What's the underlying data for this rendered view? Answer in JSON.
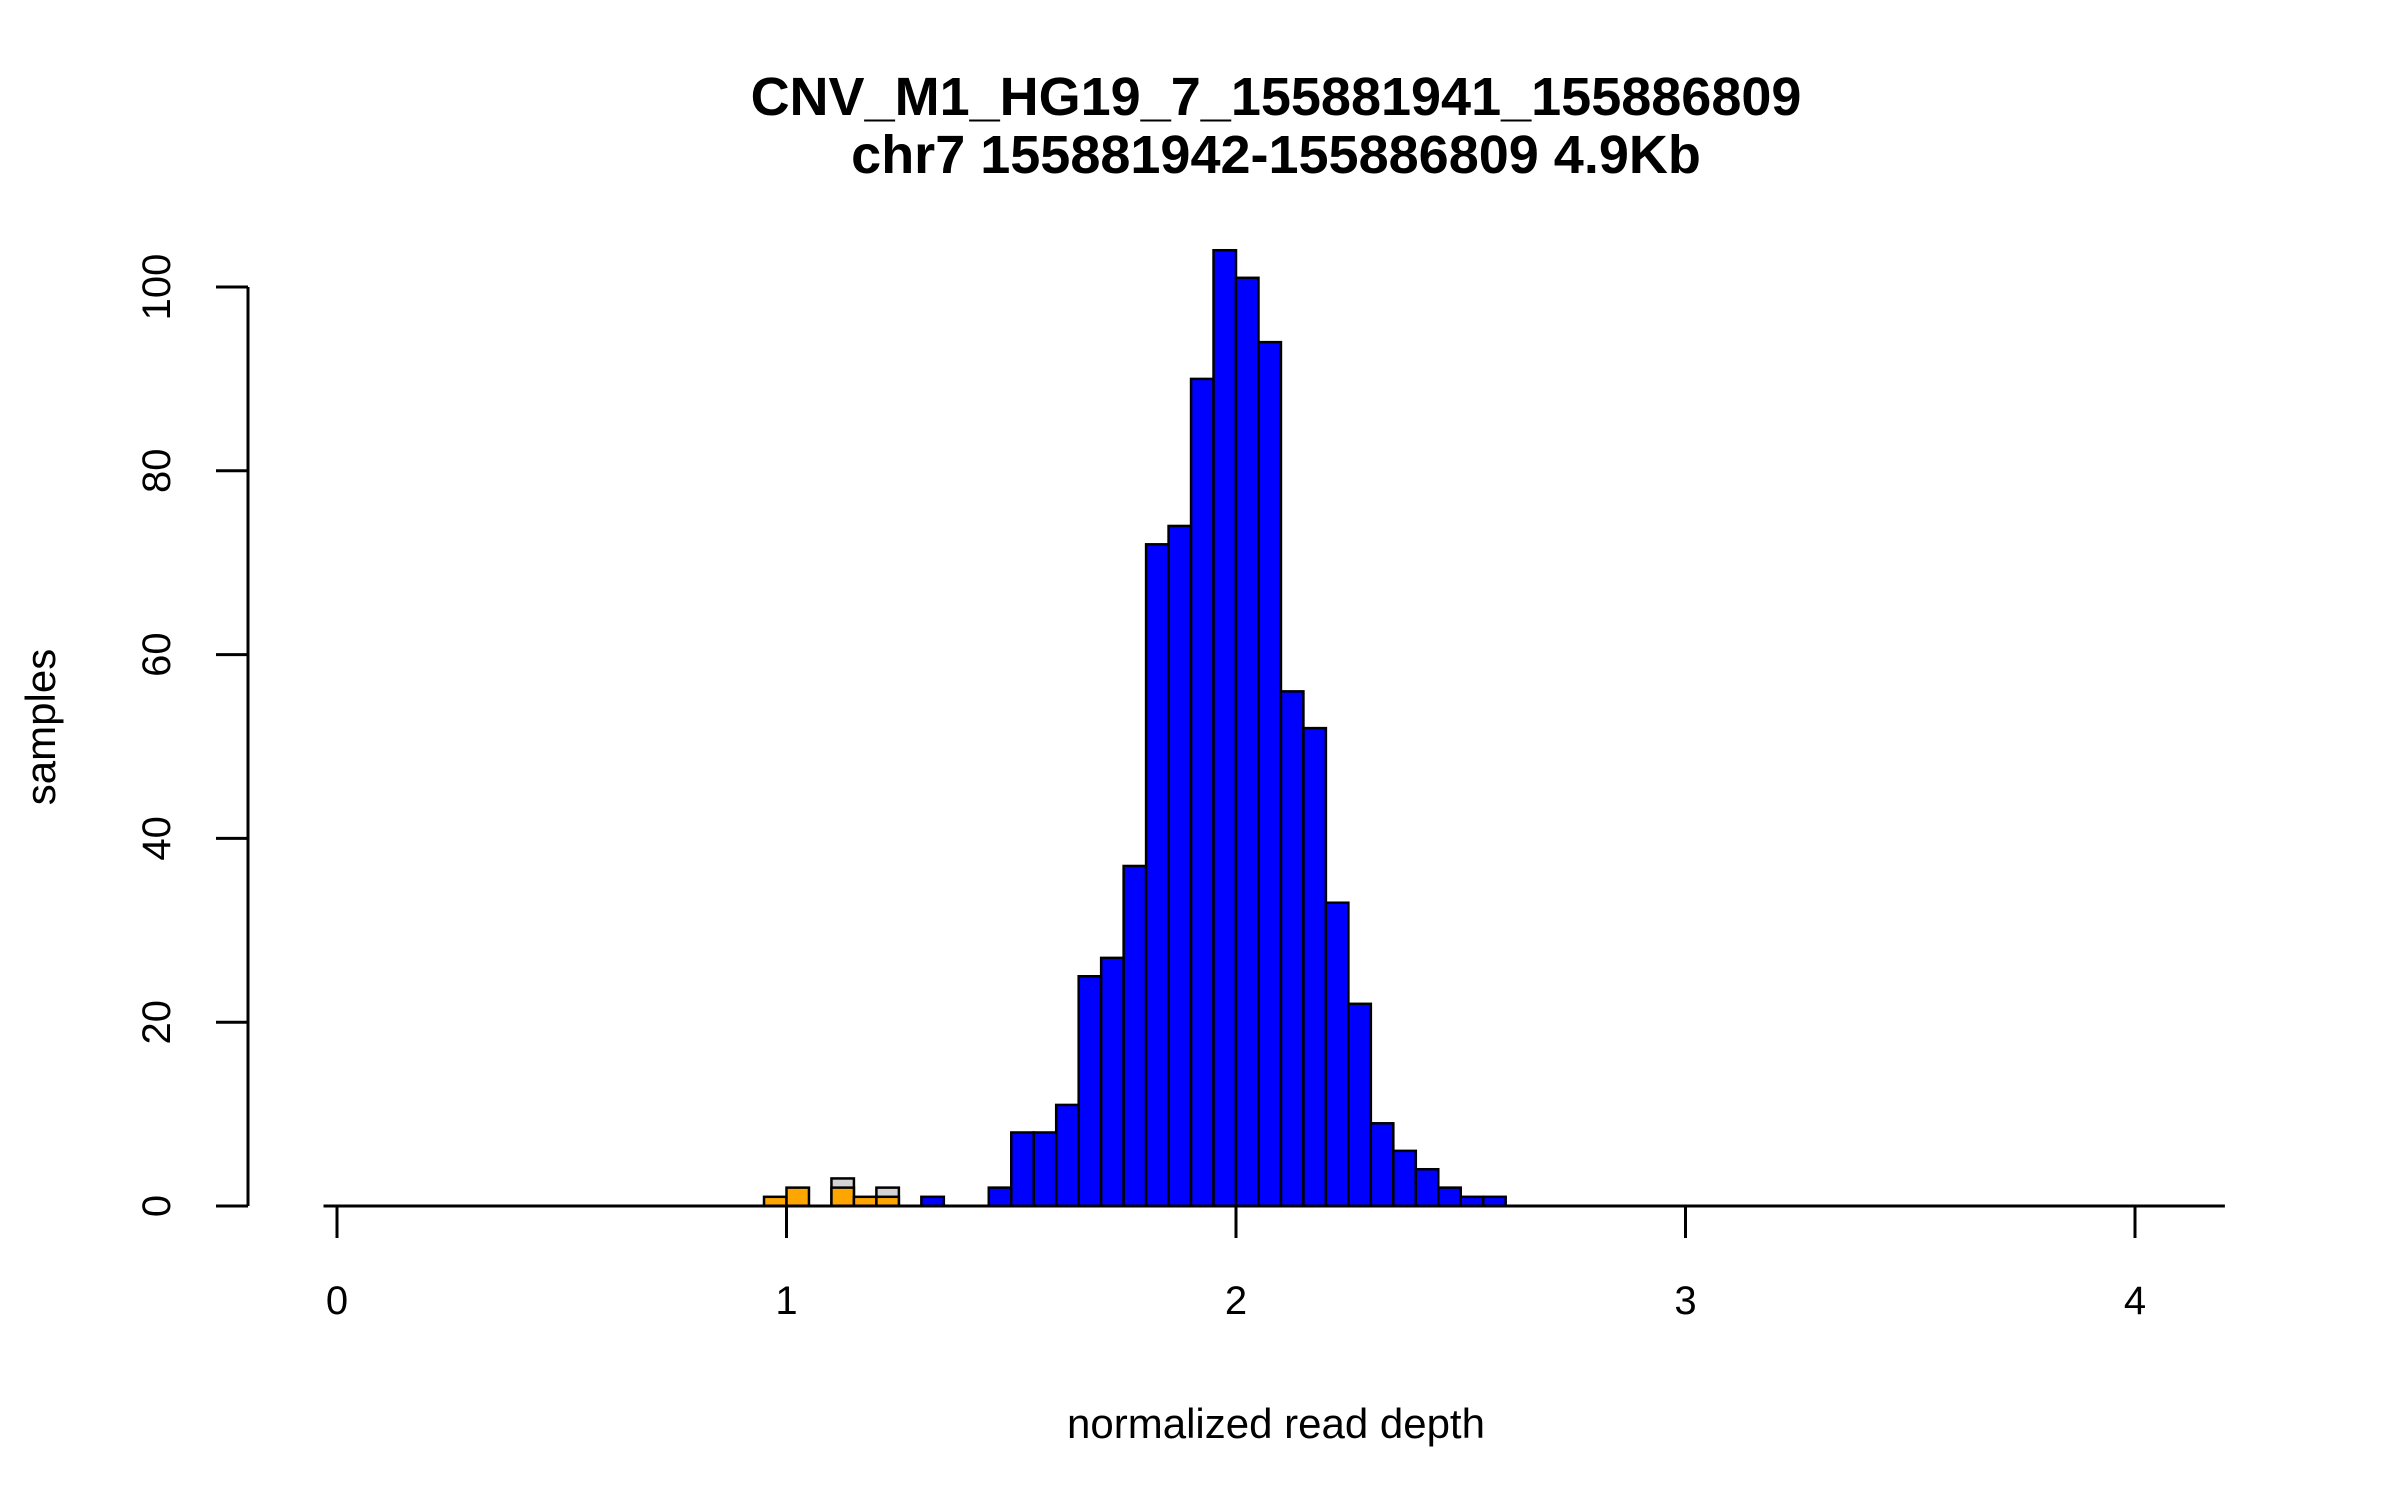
{
  "chart_data": {
    "type": "bar",
    "title": "CNV_M1_HG19_7_155881941_155886809",
    "subtitle": "chr7 155881942-155886809 4.9Kb",
    "xlabel": "normalized read depth",
    "ylabel": "samples",
    "xlim": [
      -0.03,
      4.2
    ],
    "ylim": [
      0,
      104
    ],
    "x_ticks": [
      0,
      1,
      2,
      3,
      4
    ],
    "y_ticks": [
      0,
      20,
      40,
      60,
      80,
      100
    ],
    "bin_width": 0.05,
    "grid": false,
    "legend": "none",
    "colors": {
      "blue_bins": "#0000ff",
      "orange_bins": "#ffa500",
      "gray_bins": "#d3d3d3",
      "outline": "#000000"
    },
    "series": [
      {
        "color": "#0000ff",
        "bins": [
          {
            "x0": 1.3,
            "x1": 1.35,
            "count": 1
          },
          {
            "x0": 1.45,
            "x1": 1.5,
            "count": 2
          },
          {
            "x0": 1.5,
            "x1": 1.55,
            "count": 8
          },
          {
            "x0": 1.55,
            "x1": 1.6,
            "count": 8
          },
          {
            "x0": 1.6,
            "x1": 1.65,
            "count": 11
          },
          {
            "x0": 1.65,
            "x1": 1.7,
            "count": 25
          },
          {
            "x0": 1.7,
            "x1": 1.75,
            "count": 27
          },
          {
            "x0": 1.75,
            "x1": 1.8,
            "count": 37
          },
          {
            "x0": 1.8,
            "x1": 1.85,
            "count": 72
          },
          {
            "x0": 1.85,
            "x1": 1.9,
            "count": 74
          },
          {
            "x0": 1.9,
            "x1": 1.95,
            "count": 90
          },
          {
            "x0": 1.95,
            "x1": 2.0,
            "count": 104
          },
          {
            "x0": 2.0,
            "x1": 2.05,
            "count": 101
          },
          {
            "x0": 2.05,
            "x1": 2.1,
            "count": 94
          },
          {
            "x0": 2.1,
            "x1": 2.15,
            "count": 56
          },
          {
            "x0": 2.15,
            "x1": 2.2,
            "count": 52
          },
          {
            "x0": 2.2,
            "x1": 2.25,
            "count": 33
          },
          {
            "x0": 2.25,
            "x1": 2.3,
            "count": 22
          },
          {
            "x0": 2.3,
            "x1": 2.35,
            "count": 9
          },
          {
            "x0": 2.35,
            "x1": 2.4,
            "count": 6
          },
          {
            "x0": 2.4,
            "x1": 2.45,
            "count": 4
          },
          {
            "x0": 2.45,
            "x1": 2.5,
            "count": 2
          },
          {
            "x0": 2.5,
            "x1": 2.55,
            "count": 1
          },
          {
            "x0": 2.55,
            "x1": 2.6,
            "count": 1
          }
        ]
      },
      {
        "color": "#d3d3d3",
        "bins": [
          {
            "x0": 1.1,
            "x1": 1.15,
            "count": 3
          },
          {
            "x0": 1.2,
            "x1": 1.25,
            "count": 2
          }
        ]
      },
      {
        "color": "#ffa500",
        "bins": [
          {
            "x0": 0.95,
            "x1": 1.0,
            "count": 1
          },
          {
            "x0": 1.0,
            "x1": 1.05,
            "count": 2
          },
          {
            "x0": 1.1,
            "x1": 1.15,
            "count": 2
          },
          {
            "x0": 1.15,
            "x1": 1.2,
            "count": 1
          },
          {
            "x0": 1.2,
            "x1": 1.25,
            "count": 1
          }
        ]
      }
    ]
  }
}
